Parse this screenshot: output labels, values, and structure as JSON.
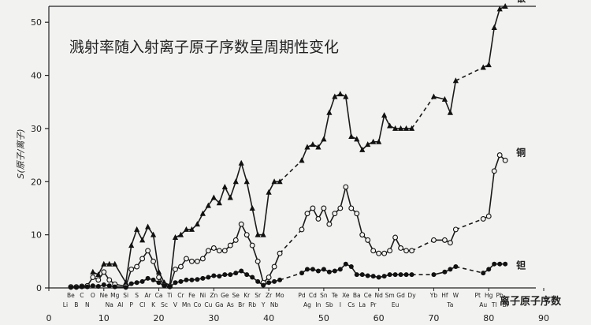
{
  "chart_data": {
    "type": "line",
    "title": "溅射率随入射离子原子序数呈周期性变化",
    "xlabel": "离子原子序数",
    "ylabel": "S(原子/离子)",
    "xlim": [
      0,
      90
    ],
    "ylim": [
      0,
      53
    ],
    "xticks": [
      0,
      10,
      20,
      30,
      40,
      50,
      60,
      70,
      80,
      90
    ],
    "yticks": [
      0,
      10,
      20,
      30,
      40,
      50
    ],
    "grid": false,
    "legend": "inline-right",
    "series": [
      {
        "name": "银",
        "marker": "filled-triangle",
        "x": [
          8,
          9,
          10,
          11,
          12,
          14,
          15,
          16,
          17,
          18,
          19,
          20,
          21,
          22,
          23,
          24,
          25,
          26,
          27,
          28,
          29,
          30,
          31,
          32,
          33,
          34,
          35,
          36,
          37,
          38,
          39,
          40,
          41,
          42,
          46,
          47,
          48,
          49,
          50,
          51,
          52,
          53,
          54,
          55,
          56,
          57,
          58,
          59,
          60,
          61,
          62,
          63,
          64,
          65,
          66,
          70,
          72,
          73,
          74,
          79,
          80,
          81,
          82,
          83
        ],
        "y": [
          3,
          2.5,
          4.5,
          4.5,
          4.5,
          1,
          8,
          11,
          9,
          11.5,
          10,
          3,
          1,
          0.5,
          9.5,
          10,
          11,
          11,
          12,
          14,
          15.5,
          17,
          16,
          19,
          17,
          20,
          23.5,
          20,
          15,
          10,
          10,
          18,
          20,
          20,
          24,
          26.5,
          27,
          26.5,
          28,
          33,
          36,
          36.5,
          36,
          28.5,
          28,
          26,
          27,
          27.5,
          27.5,
          32.5,
          30.5,
          30,
          30,
          30,
          30,
          36,
          35.5,
          33,
          39,
          41.5,
          42,
          49,
          52.5,
          53
        ]
      },
      {
        "name": "铜",
        "marker": "open-circle",
        "x": [
          4,
          5,
          6,
          7,
          8,
          9,
          10,
          11,
          12,
          14,
          15,
          16,
          17,
          18,
          19,
          20,
          21,
          22,
          23,
          24,
          25,
          26,
          27,
          28,
          29,
          30,
          31,
          32,
          33,
          34,
          35,
          36,
          37,
          38,
          39,
          40,
          41,
          42,
          46,
          47,
          48,
          49,
          50,
          51,
          52,
          53,
          54,
          55,
          56,
          57,
          58,
          59,
          60,
          61,
          62,
          63,
          64,
          65,
          66,
          70,
          72,
          73,
          74,
          79,
          80,
          81,
          82,
          83
        ],
        "y": [
          0.2,
          0.2,
          0.3,
          0.4,
          2,
          1.5,
          3,
          1.5,
          0.7,
          0.3,
          3.5,
          4,
          5.5,
          7,
          5,
          2,
          0.5,
          0.3,
          3.5,
          4,
          5.5,
          5,
          5,
          5.5,
          7,
          7.5,
          7,
          7,
          8,
          9,
          12,
          10,
          8,
          5,
          1,
          2,
          4,
          6.5,
          11,
          14,
          15,
          13,
          15,
          12,
          14,
          15,
          19,
          15,
          14,
          10,
          9,
          7,
          6.5,
          6.5,
          7,
          9.5,
          7.5,
          7,
          7,
          9,
          9,
          8.5,
          11,
          13,
          13.5,
          22,
          25,
          24
        ]
      },
      {
        "name": "钽",
        "marker": "filled-circle",
        "x": [
          4,
          5,
          6,
          7,
          8,
          9,
          10,
          11,
          12,
          14,
          15,
          16,
          17,
          18,
          19,
          20,
          21,
          22,
          23,
          24,
          25,
          26,
          27,
          28,
          29,
          30,
          31,
          32,
          33,
          34,
          35,
          36,
          37,
          38,
          39,
          40,
          41,
          42,
          46,
          47,
          48,
          49,
          50,
          51,
          52,
          53,
          54,
          55,
          56,
          57,
          58,
          59,
          60,
          61,
          62,
          63,
          64,
          65,
          66,
          70,
          72,
          73,
          74,
          79,
          80,
          81,
          82,
          83
        ],
        "y": [
          0.1,
          0.1,
          0.2,
          0.2,
          0.4,
          0.3,
          0.6,
          0.4,
          0.2,
          0.1,
          0.8,
          1,
          1.2,
          1.8,
          1.5,
          1,
          0.4,
          0.2,
          1,
          1.2,
          1.5,
          1.5,
          1.6,
          1.8,
          2,
          2.3,
          2.2,
          2.5,
          2.5,
          2.8,
          3.2,
          2.5,
          2,
          1.2,
          0.5,
          1,
          1.2,
          1.5,
          2.8,
          3.5,
          3.5,
          3.2,
          3.5,
          3,
          3.2,
          3.5,
          4.5,
          4,
          2.5,
          2.5,
          2.3,
          2.2,
          2,
          2.2,
          2.5,
          2.5,
          2.5,
          2.5,
          2.5,
          2.5,
          3,
          3.5,
          4,
          2.8,
          3.5,
          4.5,
          4.5,
          4.5
        ]
      }
    ],
    "element_labels": {
      "upper": [
        [
          4,
          "Be"
        ],
        [
          6,
          "C"
        ],
        [
          8,
          "O"
        ],
        [
          10,
          "Ne"
        ],
        [
          12,
          "Mg"
        ],
        [
          14,
          "Si"
        ],
        [
          16,
          "S"
        ],
        [
          18,
          "Ar"
        ],
        [
          20,
          "Ca"
        ],
        [
          22,
          "Ti"
        ],
        [
          24,
          "Cr"
        ],
        [
          26,
          "Fe"
        ],
        [
          28,
          "Ni"
        ],
        [
          30,
          "Zn"
        ],
        [
          32,
          "Ge"
        ],
        [
          34,
          "Se"
        ],
        [
          36,
          "Kr"
        ],
        [
          38,
          "Sr"
        ],
        [
          40,
          "Zr"
        ],
        [
          42,
          "Mo"
        ],
        [
          46,
          "Pd"
        ],
        [
          48,
          "Cd"
        ],
        [
          50,
          "Sn"
        ],
        [
          52,
          "Te"
        ],
        [
          54,
          "Xe"
        ],
        [
          56,
          "Ba"
        ],
        [
          58,
          "Ce"
        ],
        [
          60,
          "Nd"
        ],
        [
          62,
          "Sm"
        ],
        [
          64,
          "Gd"
        ],
        [
          66,
          "Dy"
        ],
        [
          70,
          "Yb"
        ],
        [
          72,
          "Hf"
        ],
        [
          74,
          "W"
        ],
        [
          78,
          "Pt"
        ],
        [
          80,
          "Hg"
        ],
        [
          82,
          "Pb"
        ]
      ],
      "lower": [
        [
          3,
          "Li"
        ],
        [
          5,
          "B"
        ],
        [
          7,
          "N"
        ],
        [
          11,
          "Na"
        ],
        [
          13,
          "Al"
        ],
        [
          15,
          "P"
        ],
        [
          17,
          "Cl"
        ],
        [
          19,
          "K"
        ],
        [
          21,
          "Sc"
        ],
        [
          23,
          "V"
        ],
        [
          25,
          "Mn"
        ],
        [
          27,
          "Co"
        ],
        [
          29,
          "Cu"
        ],
        [
          31,
          "Ga"
        ],
        [
          33,
          "As"
        ],
        [
          35,
          "Br"
        ],
        [
          37,
          "Rb"
        ],
        [
          39,
          "Y"
        ],
        [
          41,
          "Nb"
        ],
        [
          47,
          "Ag"
        ],
        [
          49,
          "In"
        ],
        [
          51,
          "Sb"
        ],
        [
          53,
          "I"
        ],
        [
          55,
          "Cs"
        ],
        [
          57,
          "La"
        ],
        [
          59,
          "Pr"
        ],
        [
          63,
          "Eu"
        ],
        [
          73,
          "Ta"
        ],
        [
          79,
          "Au"
        ],
        [
          81,
          "Tl"
        ],
        [
          83,
          "Bi"
        ]
      ]
    }
  }
}
